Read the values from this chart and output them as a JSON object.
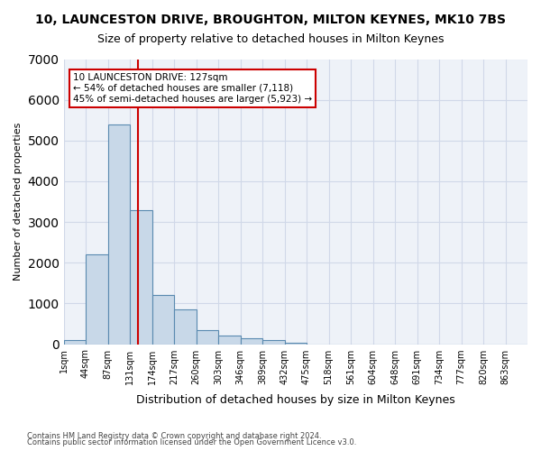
{
  "title": "10, LAUNCESTON DRIVE, BROUGHTON, MILTON KEYNES, MK10 7BS",
  "subtitle": "Size of property relative to detached houses in Milton Keynes",
  "xlabel": "Distribution of detached houses by size in Milton Keynes",
  "ylabel": "Number of detached properties",
  "footer1": "Contains HM Land Registry data © Crown copyright and database right 2024.",
  "footer2": "Contains public sector information licensed under the Open Government Licence v3.0.",
  "bin_labels": [
    "1sqm",
    "44sqm",
    "87sqm",
    "131sqm",
    "174sqm",
    "217sqm",
    "260sqm",
    "303sqm",
    "346sqm",
    "389sqm",
    "432sqm",
    "475sqm",
    "518sqm",
    "561sqm",
    "604sqm",
    "648sqm",
    "691sqm",
    "734sqm",
    "777sqm",
    "820sqm",
    "863sqm"
  ],
  "bar_values": [
    100,
    2200,
    5400,
    3300,
    1200,
    850,
    350,
    200,
    150,
    100,
    30,
    0,
    0,
    0,
    0,
    0,
    0,
    0,
    0,
    0,
    0
  ],
  "bar_color": "#c8d8e8",
  "bar_edge_color": "#5a8ab0",
  "vline_color": "#cc0000",
  "vline_pos": 2.87,
  "annotation_text": "10 LAUNCESTON DRIVE: 127sqm\n← 54% of detached houses are smaller (7,118)\n45% of semi-detached houses are larger (5,923) →",
  "annotation_box_color": "#cc0000",
  "ylim": [
    0,
    7000
  ],
  "yticks": [
    0,
    1000,
    2000,
    3000,
    4000,
    5000,
    6000,
    7000
  ],
  "grid_color": "#d0d8e8",
  "bg_color": "#eef2f8"
}
